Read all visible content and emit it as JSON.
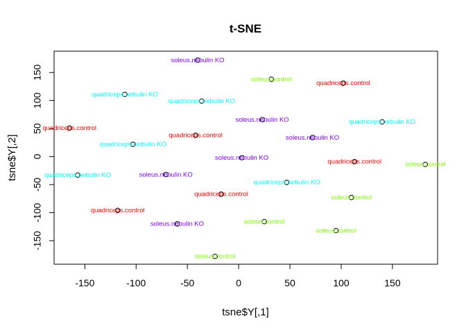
{
  "chart_data": {
    "type": "scatter",
    "title": "t-SNE",
    "xlabel": "tsne$Y[,1]",
    "ylabel": "tsne$Y[,2]",
    "xlim": [
      -180,
      194
    ],
    "ylim": [
      -192,
      188
    ],
    "xticks": [
      -150,
      -100,
      -50,
      0,
      50,
      100,
      150
    ],
    "yticks": [
      -150,
      -100,
      -50,
      0,
      50,
      100,
      150
    ],
    "grid": false,
    "legend": "none",
    "colors": {
      "quadriceps.nebulin KO": "#00FFFF",
      "quadriceps.control": "#FF0000",
      "soleus.nebulin KO": "#8000FF",
      "soleus.control": "#80FF00"
    },
    "points": [
      {
        "x": -40,
        "y": 172,
        "label": "soleus.nebulin KO"
      },
      {
        "x": 32,
        "y": 138,
        "label": "soleus.control"
      },
      {
        "x": 102,
        "y": 131,
        "label": "quadriceps.control"
      },
      {
        "x": -111,
        "y": 111,
        "label": "quadriceps.nebulin KO"
      },
      {
        "x": -36,
        "y": 99,
        "label": "quadriceps.nebulin KO"
      },
      {
        "x": 23,
        "y": 66,
        "label": "soleus.nebulin KO"
      },
      {
        "x": 140,
        "y": 62,
        "label": "quadriceps.nebulin KO"
      },
      {
        "x": -165,
        "y": 51,
        "label": "quadriceps.control"
      },
      {
        "x": -42,
        "y": 38,
        "label": "quadriceps.control"
      },
      {
        "x": 72,
        "y": 34,
        "label": "soleus.nebulin KO"
      },
      {
        "x": -103,
        "y": 22,
        "label": "quadriceps.nebulin KO"
      },
      {
        "x": 3,
        "y": -2,
        "label": "soleus.nebulin KO"
      },
      {
        "x": 113,
        "y": -9,
        "label": "quadriceps.control"
      },
      {
        "x": 182,
        "y": -14,
        "label": "soleus.control"
      },
      {
        "x": -157,
        "y": -33,
        "label": "quadriceps.nebulin KO"
      },
      {
        "x": -71,
        "y": -32,
        "label": "soleus.nebulin KO"
      },
      {
        "x": 47,
        "y": -46,
        "label": "quadriceps.nebulin KO"
      },
      {
        "x": -17,
        "y": -67,
        "label": "quadriceps.control"
      },
      {
        "x": 110,
        "y": -73,
        "label": "soleus.control"
      },
      {
        "x": -118,
        "y": -96,
        "label": "quadriceps.control"
      },
      {
        "x": -60,
        "y": -120,
        "label": "soleus.nebulin KO"
      },
      {
        "x": 25,
        "y": -116,
        "label": "soleus.control"
      },
      {
        "x": 95,
        "y": -132,
        "label": "soleus.control"
      },
      {
        "x": -23,
        "y": -178,
        "label": "soleus.control"
      }
    ]
  }
}
